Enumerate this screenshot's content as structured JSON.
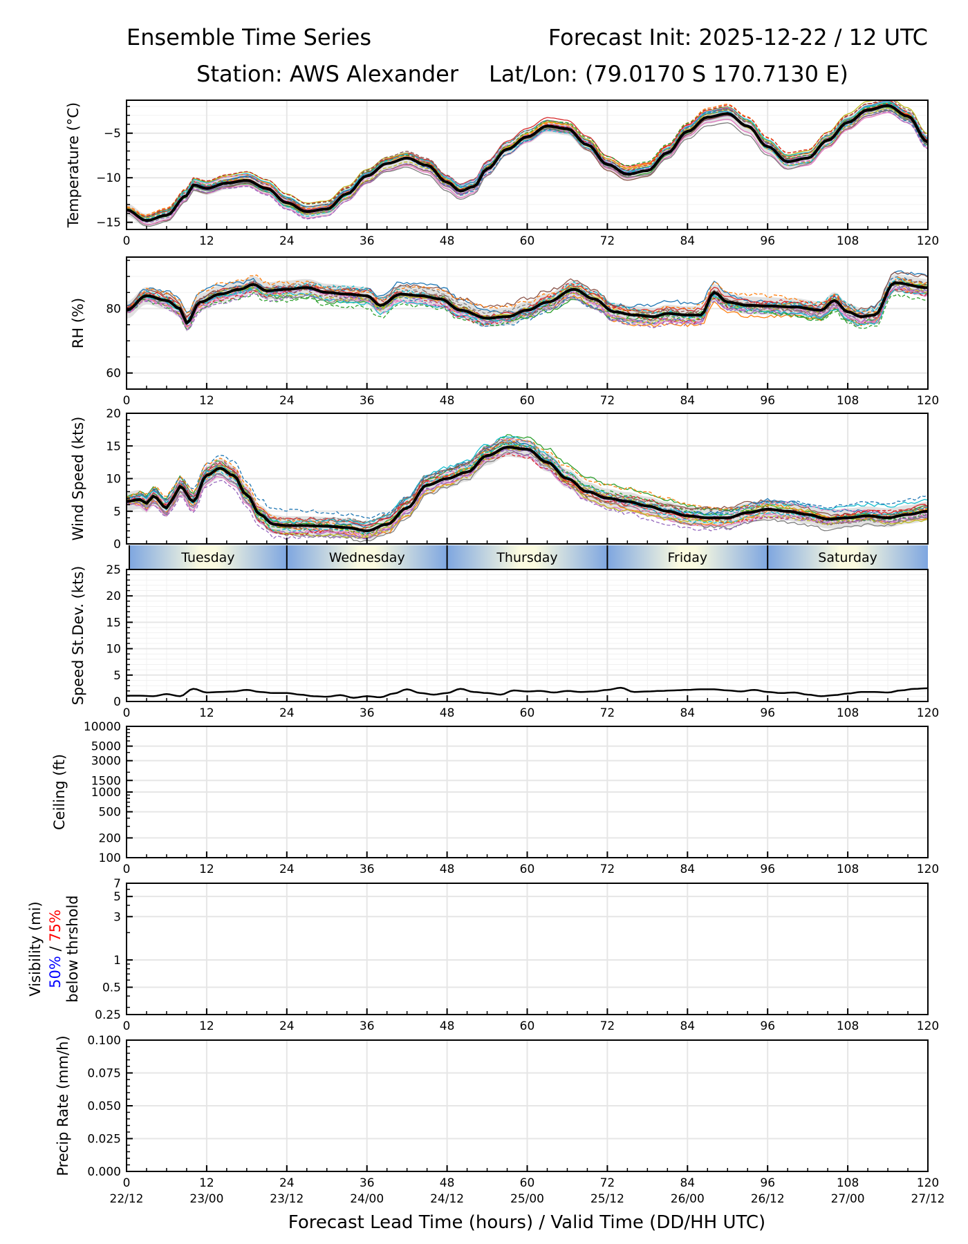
{
  "header": {
    "title_left": "Ensemble Time Series",
    "title_right": "Forecast Init: 2025-12-22 / 12 UTC",
    "station": "Station: AWS Alexander",
    "latlon": "Lat/Lon: (79.0170 S 170.7130 E)"
  },
  "x_axis": {
    "label": "Forecast Lead Time (hours) / Valid Time (DD/HH UTC)",
    "lead_ticks": [
      "0",
      "12",
      "24",
      "36",
      "48",
      "60",
      "72",
      "84",
      "96",
      "108",
      "120"
    ],
    "valid_ticks": [
      "22/12",
      "23/00",
      "23/12",
      "24/00",
      "24/12",
      "25/00",
      "25/12",
      "26/00",
      "26/12",
      "27/00",
      "27/12"
    ],
    "range": [
      0,
      120
    ]
  },
  "day_band": {
    "days": [
      {
        "label": "Tuesday",
        "start": 0,
        "end": 24
      },
      {
        "label": "Wednesday",
        "start": 24,
        "end": 48
      },
      {
        "label": "Thursday",
        "start": 48,
        "end": 72
      },
      {
        "label": "Friday",
        "start": 72,
        "end": 96
      },
      {
        "label": "Saturday",
        "start": 96,
        "end": 120
      }
    ],
    "edge_color": "#7ea6e0",
    "center_color": "#fbfbe0"
  },
  "colors": {
    "mean_line": "#000000",
    "spread_fill": "#d9d9d9",
    "grid": "#e6e6e6",
    "members": [
      "#1f77b4",
      "#ff7f0e",
      "#2ca02c",
      "#d62728",
      "#9467bd",
      "#8c564b",
      "#e377c2",
      "#7f7f7f",
      "#bcbd22",
      "#17becf"
    ],
    "vis_50": "#0000ff",
    "vis_75": "#ff0000"
  },
  "chart_data": [
    {
      "type": "line",
      "id": "temperature",
      "ylabel": "Temperature (°C)",
      "ylim": [
        -15.8,
        -1.3
      ],
      "yticks": [
        -15,
        -10,
        -5
      ],
      "ytick_labels": [
        "−15",
        "−10",
        "−5"
      ],
      "grid": true,
      "x": [
        0,
        3,
        6,
        9,
        10,
        12,
        15,
        18,
        21,
        24,
        27,
        30,
        33,
        36,
        39,
        42,
        45,
        48,
        50,
        52,
        54,
        57,
        60,
        63,
        66,
        69,
        72,
        75,
        78,
        81,
        84,
        87,
        90,
        93,
        96,
        99,
        102,
        105,
        108,
        111,
        114,
        117,
        120
      ],
      "series": [
        {
          "name": "ensemble mean",
          "values": [
            -13.6,
            -14.8,
            -14.2,
            -12.0,
            -10.8,
            -11.2,
            -10.6,
            -10.3,
            -11.2,
            -12.8,
            -13.8,
            -13.5,
            -11.8,
            -9.8,
            -8.4,
            -7.8,
            -8.6,
            -10.5,
            -11.5,
            -11.0,
            -9.0,
            -6.8,
            -5.4,
            -4.2,
            -4.5,
            -6.3,
            -8.5,
            -9.6,
            -9.2,
            -7.2,
            -4.8,
            -3.2,
            -2.8,
            -4.2,
            -6.5,
            -8.2,
            -7.8,
            -5.8,
            -3.8,
            -2.4,
            -1.9,
            -3.1,
            -6.0
          ]
        }
      ],
      "members": 20,
      "member_spread": 0.8
    },
    {
      "type": "line",
      "id": "rh",
      "ylabel": "RH (%)",
      "ylim": [
        55,
        96
      ],
      "yticks": [
        60,
        80
      ],
      "ytick_labels": [
        "60",
        "80"
      ],
      "grid": true,
      "x": [
        0,
        3,
        6,
        8,
        9,
        11,
        14,
        17,
        19,
        21,
        24,
        27,
        30,
        33,
        36,
        38,
        41,
        44,
        47,
        50,
        54,
        57,
        60,
        63,
        67,
        70,
        73,
        76,
        79,
        81,
        84,
        86,
        88,
        90,
        93,
        96,
        100,
        104,
        106,
        108,
        110,
        112,
        115,
        120
      ],
      "series": [
        {
          "name": "ensemble mean",
          "values": [
            79.5,
            84.0,
            82.5,
            80.0,
            75.5,
            82.0,
            84.5,
            86.0,
            87.5,
            85.5,
            86.0,
            86.5,
            85.0,
            84.5,
            84.0,
            81.0,
            84.5,
            84.0,
            83.0,
            79.5,
            77.0,
            77.5,
            79.5,
            82.0,
            86.0,
            83.0,
            79.0,
            78.0,
            77.5,
            78.5,
            78.0,
            78.0,
            85.0,
            82.0,
            81.0,
            80.8,
            80.5,
            79.5,
            82.5,
            79.0,
            77.5,
            78.0,
            88.0,
            86.5
          ]
        }
      ],
      "members": 20,
      "member_spread": 3.0
    },
    {
      "type": "line",
      "id": "wind_speed",
      "ylabel": "Wind Speed (kts)",
      "ylim": [
        0,
        20
      ],
      "yticks": [
        0,
        5,
        10,
        15,
        20
      ],
      "ytick_labels": [
        "0",
        "5",
        "10",
        "15",
        "20"
      ],
      "grid": true,
      "x": [
        0,
        2,
        3,
        4,
        6,
        7,
        8,
        10,
        12,
        14,
        16,
        18,
        20,
        22,
        24,
        27,
        30,
        33,
        36,
        39,
        42,
        45,
        48,
        51,
        54,
        57,
        60,
        63,
        66,
        69,
        72,
        75,
        78,
        81,
        84,
        87,
        90,
        93,
        96,
        99,
        102,
        105,
        108,
        111,
        114,
        117,
        120
      ],
      "series": [
        {
          "name": "ensemble mean",
          "values": [
            6.5,
            6.8,
            6.2,
            7.3,
            5.5,
            7.0,
            8.8,
            6.5,
            10.5,
            11.6,
            10.5,
            7.5,
            4.5,
            3.0,
            2.8,
            2.8,
            2.7,
            2.5,
            2.0,
            3.0,
            5.5,
            9.0,
            10.0,
            11.0,
            13.5,
            14.8,
            14.5,
            12.5,
            10.0,
            8.0,
            7.0,
            6.5,
            5.8,
            5.0,
            4.3,
            4.0,
            4.0,
            4.8,
            5.3,
            5.0,
            4.5,
            3.8,
            4.0,
            4.3,
            4.0,
            4.5,
            5.0
          ]
        }
      ],
      "members": 20,
      "member_spread": 1.6
    },
    {
      "type": "line",
      "id": "speed_stdev",
      "ylabel": "Speed St.Dev. (kts)",
      "ylim": [
        0,
        25
      ],
      "yticks": [
        0,
        5,
        10,
        15,
        20,
        25
      ],
      "ytick_labels": [
        "0",
        "5",
        "10",
        "15",
        "20",
        "25"
      ],
      "grid": true,
      "x": [
        0,
        2,
        4,
        6,
        8,
        10,
        12,
        14,
        16,
        18,
        20,
        22,
        24,
        26,
        28,
        30,
        32,
        34,
        36,
        38,
        40,
        42,
        44,
        46,
        48,
        50,
        52,
        54,
        56,
        58,
        60,
        62,
        64,
        66,
        68,
        70,
        72,
        74,
        76,
        78,
        80,
        82,
        84,
        86,
        88,
        90,
        92,
        94,
        96,
        98,
        100,
        102,
        104,
        106,
        108,
        110,
        112,
        114,
        116,
        118,
        120
      ],
      "series": [
        {
          "name": "speed standard deviation",
          "values": [
            1.1,
            1.1,
            1.0,
            1.4,
            1.0,
            2.4,
            1.7,
            1.8,
            1.9,
            2.2,
            1.8,
            1.6,
            1.6,
            1.3,
            1.0,
            0.9,
            1.2,
            0.7,
            1.0,
            0.8,
            1.5,
            2.3,
            1.6,
            1.3,
            1.6,
            2.4,
            1.8,
            1.6,
            1.3,
            2.1,
            1.9,
            2.0,
            1.7,
            2.0,
            1.8,
            1.9,
            2.2,
            2.6,
            1.8,
            1.9,
            2.0,
            2.1,
            2.2,
            2.3,
            2.3,
            2.1,
            1.9,
            2.2,
            1.8,
            1.6,
            1.7,
            1.3,
            1.0,
            1.2,
            1.5,
            1.8,
            1.8,
            1.7,
            2.1,
            2.4,
            2.5
          ]
        }
      ]
    },
    {
      "type": "line",
      "id": "ceiling",
      "ylabel": "Ceiling (ft)",
      "yscale": "log",
      "ylim": [
        100,
        10000
      ],
      "yticks": [
        100,
        200,
        500,
        1000,
        1500,
        3000,
        5000,
        10000
      ],
      "ytick_labels": [
        "100",
        "200",
        "500",
        "1000",
        "1500",
        "3000",
        "5000",
        "10000"
      ],
      "grid": true,
      "series": []
    },
    {
      "type": "line",
      "id": "visibility",
      "ylabel": "Visibility (mi)",
      "ylabel_line2_a": "50%",
      "ylabel_line2_sep": " / ",
      "ylabel_line2_b": "75%",
      "ylabel_line3": "below thrshold",
      "yscale": "log",
      "ylim": [
        0.25,
        7
      ],
      "yticks": [
        0.25,
        0.5,
        1,
        3,
        5,
        7
      ],
      "ytick_labels": [
        "0.25",
        "0.5",
        "1",
        "3",
        "5",
        "7"
      ],
      "grid": true,
      "series": []
    },
    {
      "type": "line",
      "id": "precip_rate",
      "ylabel": "Precip Rate (mm/h)",
      "ylim": [
        0,
        0.1
      ],
      "yticks": [
        0,
        0.025,
        0.05,
        0.075,
        0.1
      ],
      "ytick_labels": [
        "0.000",
        "0.025",
        "0.050",
        "0.075",
        "0.100"
      ],
      "grid": true,
      "series": []
    }
  ]
}
